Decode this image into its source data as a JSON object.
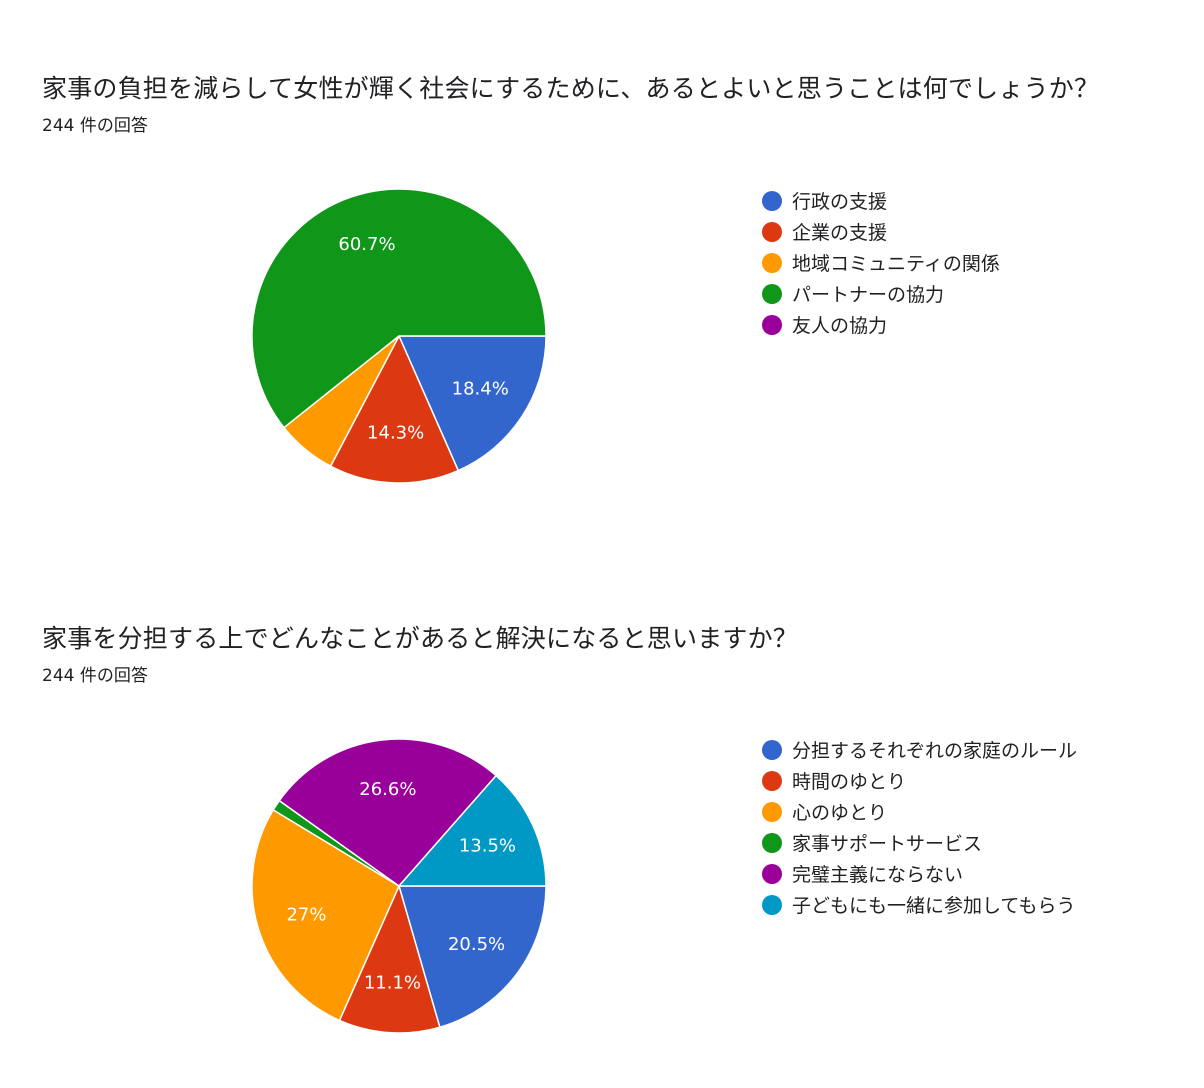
{
  "chart_data": [
    {
      "type": "pie",
      "title": "家事の負担を減らして女性が輝く社会にするために、あるとよいと思うことは何でしょうか？",
      "subtitle": "244 件の回答",
      "legend_position": "right",
      "categories": [
        "行政の支援",
        "企業の支援",
        "地域コミュニティの関係",
        "パートナーの協力",
        "友人の協力"
      ],
      "values": [
        18.4,
        14.3,
        6.6,
        60.7,
        0
      ],
      "labels": [
        "18.4%",
        "14.3%",
        "",
        "60.7%",
        ""
      ],
      "colors": [
        "#3366cc",
        "#dc3912",
        "#ff9900",
        "#109618",
        "#990099"
      ]
    },
    {
      "type": "pie",
      "title": "家事を分担する上でどんなことがあると解決になると思いますか？",
      "subtitle": "244 件の回答",
      "legend_position": "right",
      "categories": [
        "分担するそれぞれの家庭のルール",
        "時間のゆとり",
        "心のゆとり",
        "家事サポートサービス",
        "完璧主義にならない",
        "子どもにも一緒に参加してもらう"
      ],
      "values": [
        20.5,
        11.1,
        27,
        1.2,
        26.6,
        13.5
      ],
      "labels": [
        "20.5%",
        "11.1%",
        "27%",
        "",
        "26.6%",
        "13.5%"
      ],
      "colors": [
        "#3366cc",
        "#dc3912",
        "#ff9900",
        "#109618",
        "#990099",
        "#0099c6"
      ]
    }
  ]
}
